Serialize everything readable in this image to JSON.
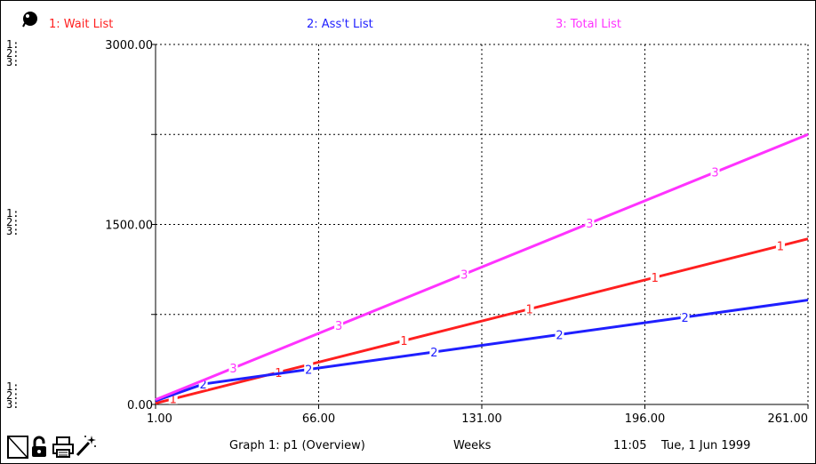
{
  "chart_data": {
    "type": "line",
    "x_range": [
      1,
      261
    ],
    "y_range": [
      0,
      3000
    ],
    "x_ticks": [
      "1.00",
      "66.00",
      "131.00",
      "196.00",
      "261.00"
    ],
    "y_ticks": [
      "0.00",
      "1500.00",
      "3000.00"
    ],
    "grid": true,
    "series": [
      {
        "name": "1: Wait List",
        "marker": "1",
        "color": "#ff1f1f",
        "x": [
          1,
          261
        ],
        "y": [
          10,
          1380
        ]
      },
      {
        "name": "2: Ass't List",
        "marker": "2",
        "color": "#1f1fff",
        "x": [
          1,
          20,
          261
        ],
        "y": [
          30,
          170,
          870
        ]
      },
      {
        "name": "3: Total List",
        "marker": "3",
        "color": "#ff33ff",
        "x": [
          1,
          261
        ],
        "y": [
          40,
          2250
        ]
      }
    ]
  },
  "scale_key": "1:\n2:\n3:",
  "footer": {
    "graph_title": "Graph 1: p1 (Overview)",
    "units": "Weeks",
    "time": "11:05",
    "date": "Tue, 1 Jun 1999"
  },
  "icons": [
    "lock-icon",
    "printer-icon",
    "magic-wand-icon",
    "page-turn-icon",
    "pin-icon"
  ]
}
